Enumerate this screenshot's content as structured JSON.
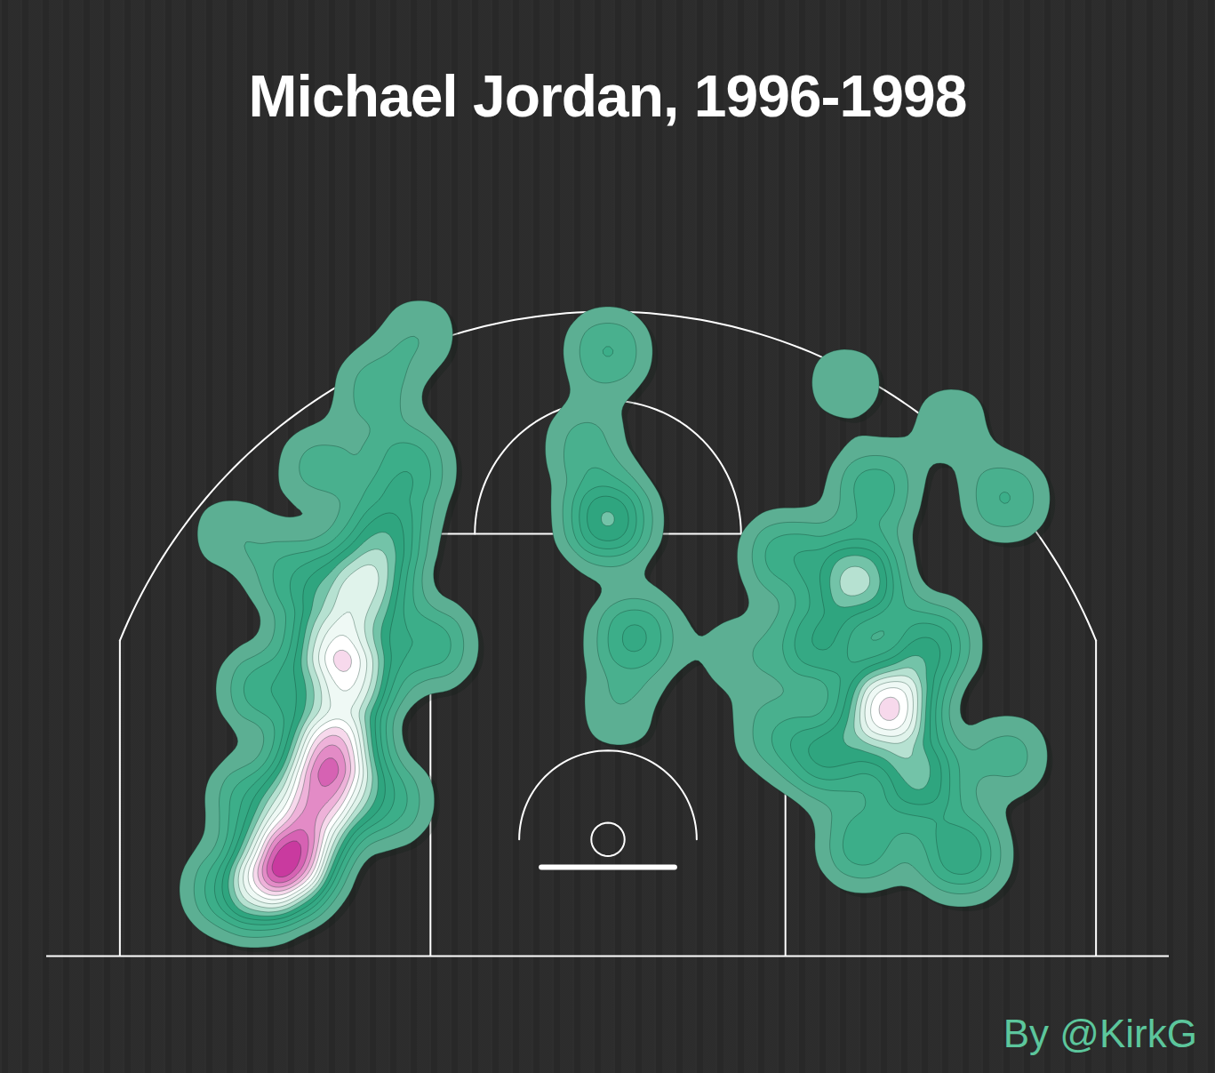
{
  "chart_data": {
    "type": "density",
    "title": "Michael Jordan, 1996-1998",
    "caption": "By @KirkG",
    "x": [
      -14.2,
      -12.4,
      -13,
      -15.5,
      -11.5,
      -11,
      -12.5,
      -10,
      -9,
      -14,
      -15.5,
      -16,
      -8,
      -10.5,
      -13,
      -8.5,
      -17,
      -10,
      -17.5,
      0,
      0,
      1.2,
      -1,
      0.5,
      5.9,
      12.7,
      11.3,
      14,
      15.9,
      9.5,
      14.5,
      10,
      11.5,
      8,
      12,
      17.9,
      10.7,
      15.5,
      7.5,
      18
    ],
    "y": [
      4.4,
      9.4,
      7,
      3,
      12.5,
      16.5,
      14,
      19,
      22,
      17,
      12,
      7,
      14,
      25.5,
      22,
      28,
      19,
      7,
      3,
      19.6,
      27.2,
      14.4,
      23,
      11,
      13.6,
      11.2,
      17,
      8,
      4.6,
      14,
      14,
      9,
      5,
      18,
      21,
      20.6,
      25.8,
      24,
      10,
      9
    ],
    "weights": [
      10,
      9,
      8,
      5,
      6,
      6,
      5,
      4,
      3,
      3,
      3,
      3,
      3,
      2,
      2,
      1.5,
      1.5,
      3,
      2,
      5,
      2.5,
      3.5,
      2,
      1.5,
      1.5,
      9,
      6,
      5,
      4,
      4,
      4,
      4,
      3,
      3,
      3,
      2.5,
      1.5,
      1.5,
      2,
      2
    ],
    "xlim": [
      -25.3,
      25.3
    ],
    "ylim": [
      0,
      40
    ],
    "tick_labels": false,
    "colors": [
      "#6fae98",
      "#3fb08c",
      "#2fa57f",
      "#d8f0e6",
      "#ffffff",
      "#ea9fd0",
      "#c93a9f"
    ]
  }
}
